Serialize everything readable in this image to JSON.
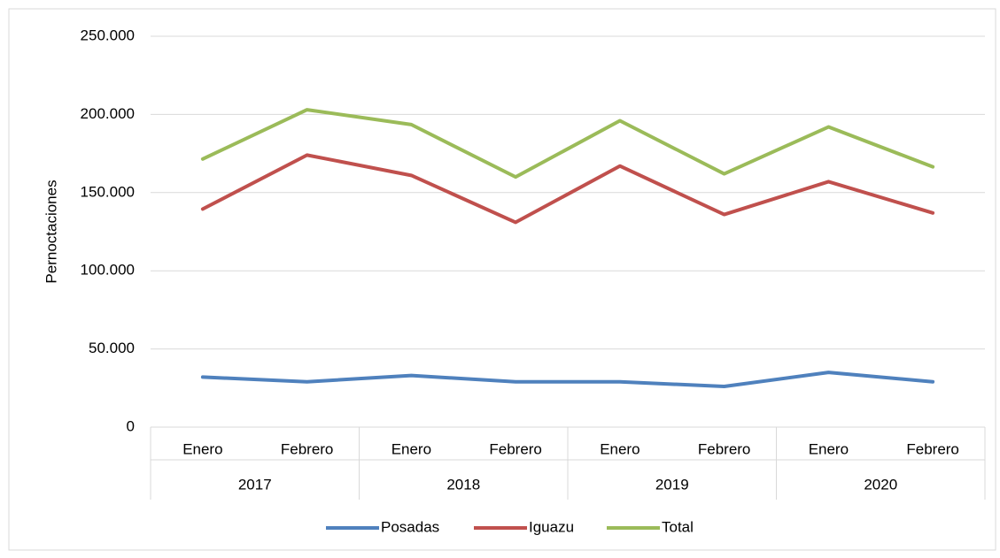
{
  "chart_data": {
    "type": "line",
    "y_label": "Pernoctaciones",
    "categories": [
      "Enero",
      "Febrero",
      "Enero",
      "Febrero",
      "Enero",
      "Febrero",
      "Enero",
      "Febrero"
    ],
    "category_groups": [
      "2017",
      "2018",
      "2019",
      "2020"
    ],
    "series": [
      {
        "name": "Posadas",
        "color": "#4f81bd",
        "values": [
          32000,
          29000,
          33000,
          29000,
          29000,
          26000,
          35000,
          29000
        ]
      },
      {
        "name": "Iguazu",
        "color": "#c0504d",
        "values": [
          139500,
          174000,
          161000,
          131000,
          167000,
          136000,
          157000,
          137000
        ]
      },
      {
        "name": "Total",
        "color": "#9bbb59",
        "values": [
          171500,
          203000,
          193500,
          160000,
          196000,
          162000,
          192000,
          166500
        ]
      }
    ],
    "ylim": [
      0,
      250000
    ],
    "yticks": [
      0,
      {
        "value": 50000,
        "label": "50.000"
      },
      {
        "value": 100000,
        "label": "100.000"
      },
      {
        "value": 150000,
        "label": "150.000"
      },
      {
        "value": 200000,
        "label": "200.000"
      },
      {
        "value": 250000,
        "label": "250.000"
      }
    ],
    "grid": true,
    "legend": "bottom"
  }
}
